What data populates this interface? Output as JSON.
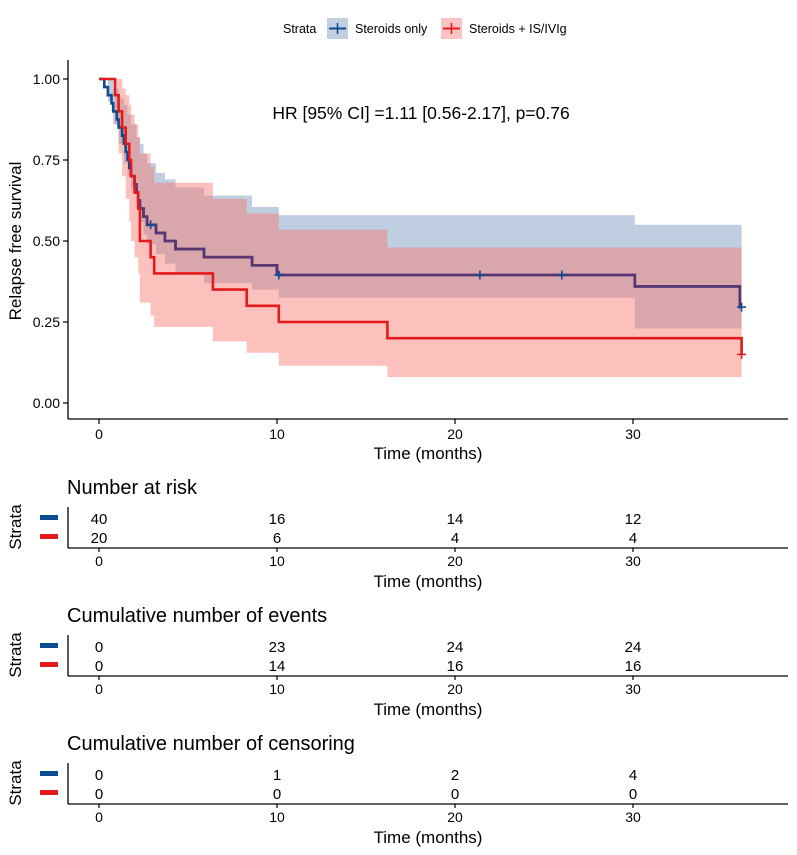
{
  "chart_data": {
    "type": "line",
    "subtype": "kaplan-meier",
    "legend": {
      "title": "Strata",
      "placement": "top",
      "entries": [
        "Steroids only",
        "Steroids + IS/IVIg"
      ]
    },
    "annotation": "HR [95% CI] =1.11 [0.56-2.17], p=0.76",
    "xlabel": "Time (months)",
    "ylabel": "Relapse free survival",
    "xlim": [
      -1.8,
      38.8
    ],
    "ylim": [
      -0.05,
      1.05
    ],
    "xticks": [
      0,
      10,
      20,
      30
    ],
    "xtick_labels": [
      "0",
      "10",
      "20",
      "30"
    ],
    "yticks": [
      0,
      0.25,
      0.5,
      0.75,
      1.0
    ],
    "ytick_labels": [
      "0.00",
      "0.25",
      "0.50",
      "0.75",
      "1.00"
    ],
    "grid": false,
    "series": [
      {
        "name": "Steroids only",
        "color": "#0E4C92",
        "fill_color": "#4A73A8",
        "steps": [
          [
            0,
            1.0
          ],
          [
            0.3,
            0.975
          ],
          [
            0.5,
            0.95
          ],
          [
            0.7,
            0.925
          ],
          [
            0.8,
            0.9
          ],
          [
            1.0,
            0.875
          ],
          [
            1.1,
            0.85
          ],
          [
            1.3,
            0.825
          ],
          [
            1.4,
            0.8
          ],
          [
            1.5,
            0.775
          ],
          [
            1.6,
            0.75
          ],
          [
            1.7,
            0.725
          ],
          [
            1.8,
            0.7
          ],
          [
            2.0,
            0.675
          ],
          [
            2.1,
            0.65
          ],
          [
            2.2,
            0.625
          ],
          [
            2.3,
            0.6
          ],
          [
            2.5,
            0.575
          ],
          [
            2.7,
            0.55
          ],
          [
            3.2,
            0.525
          ],
          [
            3.7,
            0.5
          ],
          [
            4.3,
            0.475
          ],
          [
            5.9,
            0.45
          ],
          [
            8.6,
            0.425
          ],
          [
            10.0,
            0.4
          ],
          [
            10.1,
            0.395
          ],
          [
            30.1,
            0.36
          ],
          [
            36.0,
            0.296
          ]
        ],
        "end_time": 36.1,
        "ci_lower": [
          [
            0,
            1.0
          ],
          [
            0.5,
            0.93
          ],
          [
            0.8,
            0.86
          ],
          [
            1.1,
            0.8
          ],
          [
            1.4,
            0.74
          ],
          [
            1.6,
            0.7
          ],
          [
            1.8,
            0.66
          ],
          [
            2.1,
            0.6
          ],
          [
            2.3,
            0.56
          ],
          [
            2.5,
            0.52
          ],
          [
            2.7,
            0.49
          ],
          [
            3.2,
            0.46
          ],
          [
            3.7,
            0.43
          ],
          [
            4.3,
            0.4
          ],
          [
            5.9,
            0.37
          ],
          [
            8.6,
            0.35
          ],
          [
            10.1,
            0.325
          ],
          [
            30.1,
            0.23
          ],
          [
            36.0,
            0.23
          ]
        ],
        "ci_upper": [
          [
            0,
            1.0
          ],
          [
            0.5,
            1.0
          ],
          [
            0.8,
            0.97
          ],
          [
            1.1,
            0.94
          ],
          [
            1.4,
            0.92
          ],
          [
            1.6,
            0.89
          ],
          [
            1.8,
            0.86
          ],
          [
            2.1,
            0.82
          ],
          [
            2.3,
            0.8
          ],
          [
            2.5,
            0.77
          ],
          [
            2.7,
            0.74
          ],
          [
            3.2,
            0.71
          ],
          [
            3.7,
            0.69
          ],
          [
            4.3,
            0.665
          ],
          [
            5.9,
            0.64
          ],
          [
            8.6,
            0.605
          ],
          [
            10.1,
            0.58
          ],
          [
            30.1,
            0.55
          ],
          [
            36.0,
            0.55
          ]
        ],
        "censor_times": [
          [
            2.9,
            0.55
          ],
          [
            10.1,
            0.395
          ],
          [
            21.4,
            0.395
          ],
          [
            26.0,
            0.395
          ],
          [
            36.1,
            0.296
          ]
        ]
      },
      {
        "name": "Steroids + IS/IVIg",
        "color": "#E41A1C",
        "fill_color": "#F8766D",
        "steps": [
          [
            0,
            1.0
          ],
          [
            0.9,
            0.95
          ],
          [
            1.1,
            0.9
          ],
          [
            1.3,
            0.85
          ],
          [
            1.5,
            0.8
          ],
          [
            1.7,
            0.75
          ],
          [
            1.8,
            0.7
          ],
          [
            2.0,
            0.65
          ],
          [
            2.2,
            0.6
          ],
          [
            2.3,
            0.5
          ],
          [
            2.9,
            0.45
          ],
          [
            3.1,
            0.4
          ],
          [
            6.4,
            0.35
          ],
          [
            8.3,
            0.3
          ],
          [
            10.1,
            0.25
          ],
          [
            16.2,
            0.2
          ],
          [
            36.1,
            0.15
          ]
        ],
        "end_time": 36.1,
        "ci_lower": [
          [
            0,
            1.0
          ],
          [
            0.9,
            0.86
          ],
          [
            1.1,
            0.77
          ],
          [
            1.3,
            0.7
          ],
          [
            1.5,
            0.63
          ],
          [
            1.7,
            0.56
          ],
          [
            1.8,
            0.5
          ],
          [
            2.0,
            0.45
          ],
          [
            2.2,
            0.4
          ],
          [
            2.3,
            0.31
          ],
          [
            2.9,
            0.27
          ],
          [
            3.1,
            0.235
          ],
          [
            6.4,
            0.19
          ],
          [
            8.3,
            0.155
          ],
          [
            10.1,
            0.115
          ],
          [
            16.2,
            0.08
          ],
          [
            36.1,
            0.08
          ]
        ],
        "ci_upper": [
          [
            0,
            1.0
          ],
          [
            1.1,
            1.0
          ],
          [
            1.3,
            0.97
          ],
          [
            1.5,
            0.95
          ],
          [
            1.7,
            0.92
          ],
          [
            1.8,
            0.89
          ],
          [
            2.0,
            0.86
          ],
          [
            2.2,
            0.82
          ],
          [
            2.3,
            0.77
          ],
          [
            2.9,
            0.73
          ],
          [
            3.1,
            0.68
          ],
          [
            6.4,
            0.63
          ],
          [
            8.3,
            0.585
          ],
          [
            10.1,
            0.535
          ],
          [
            16.2,
            0.48
          ],
          [
            36.1,
            0.48
          ]
        ],
        "censor_times": [
          [
            36.1,
            0.15
          ]
        ]
      }
    ]
  },
  "tables": [
    {
      "title": "Number at risk",
      "ylabel": "Strata",
      "xlabel": "Time (months)",
      "times": [
        0,
        10,
        20,
        30
      ],
      "time_labels": [
        "0",
        "10",
        "20",
        "30"
      ],
      "rows": [
        {
          "strata": "Steroids only",
          "color": "#0E4C92",
          "values": [
            "40",
            "16",
            "14",
            "12"
          ]
        },
        {
          "strata": "Steroids + IS/IVIg",
          "color": "#E41A1C",
          "values": [
            "20",
            "6",
            "4",
            "4"
          ]
        }
      ]
    },
    {
      "title": "Cumulative number of events",
      "ylabel": "Strata",
      "xlabel": "Time (months)",
      "times": [
        0,
        10,
        20,
        30
      ],
      "time_labels": [
        "0",
        "10",
        "20",
        "30"
      ],
      "rows": [
        {
          "strata": "Steroids only",
          "color": "#0E4C92",
          "values": [
            "0",
            "23",
            "24",
            "24"
          ]
        },
        {
          "strata": "Steroids + IS/IVIg",
          "color": "#E41A1C",
          "values": [
            "0",
            "14",
            "16",
            "16"
          ]
        }
      ]
    },
    {
      "title": "Cumulative number of censoring",
      "ylabel": "Strata",
      "xlabel": "Time (months)",
      "times": [
        0,
        10,
        20,
        30
      ],
      "time_labels": [
        "0",
        "10",
        "20",
        "30"
      ],
      "rows": [
        {
          "strata": "Steroids only",
          "color": "#0E4C92",
          "values": [
            "0",
            "1",
            "2",
            "4"
          ]
        },
        {
          "strata": "Steroids + IS/IVIg",
          "color": "#E41A1C",
          "values": [
            "0",
            "0",
            "0",
            "0"
          ]
        }
      ]
    }
  ]
}
